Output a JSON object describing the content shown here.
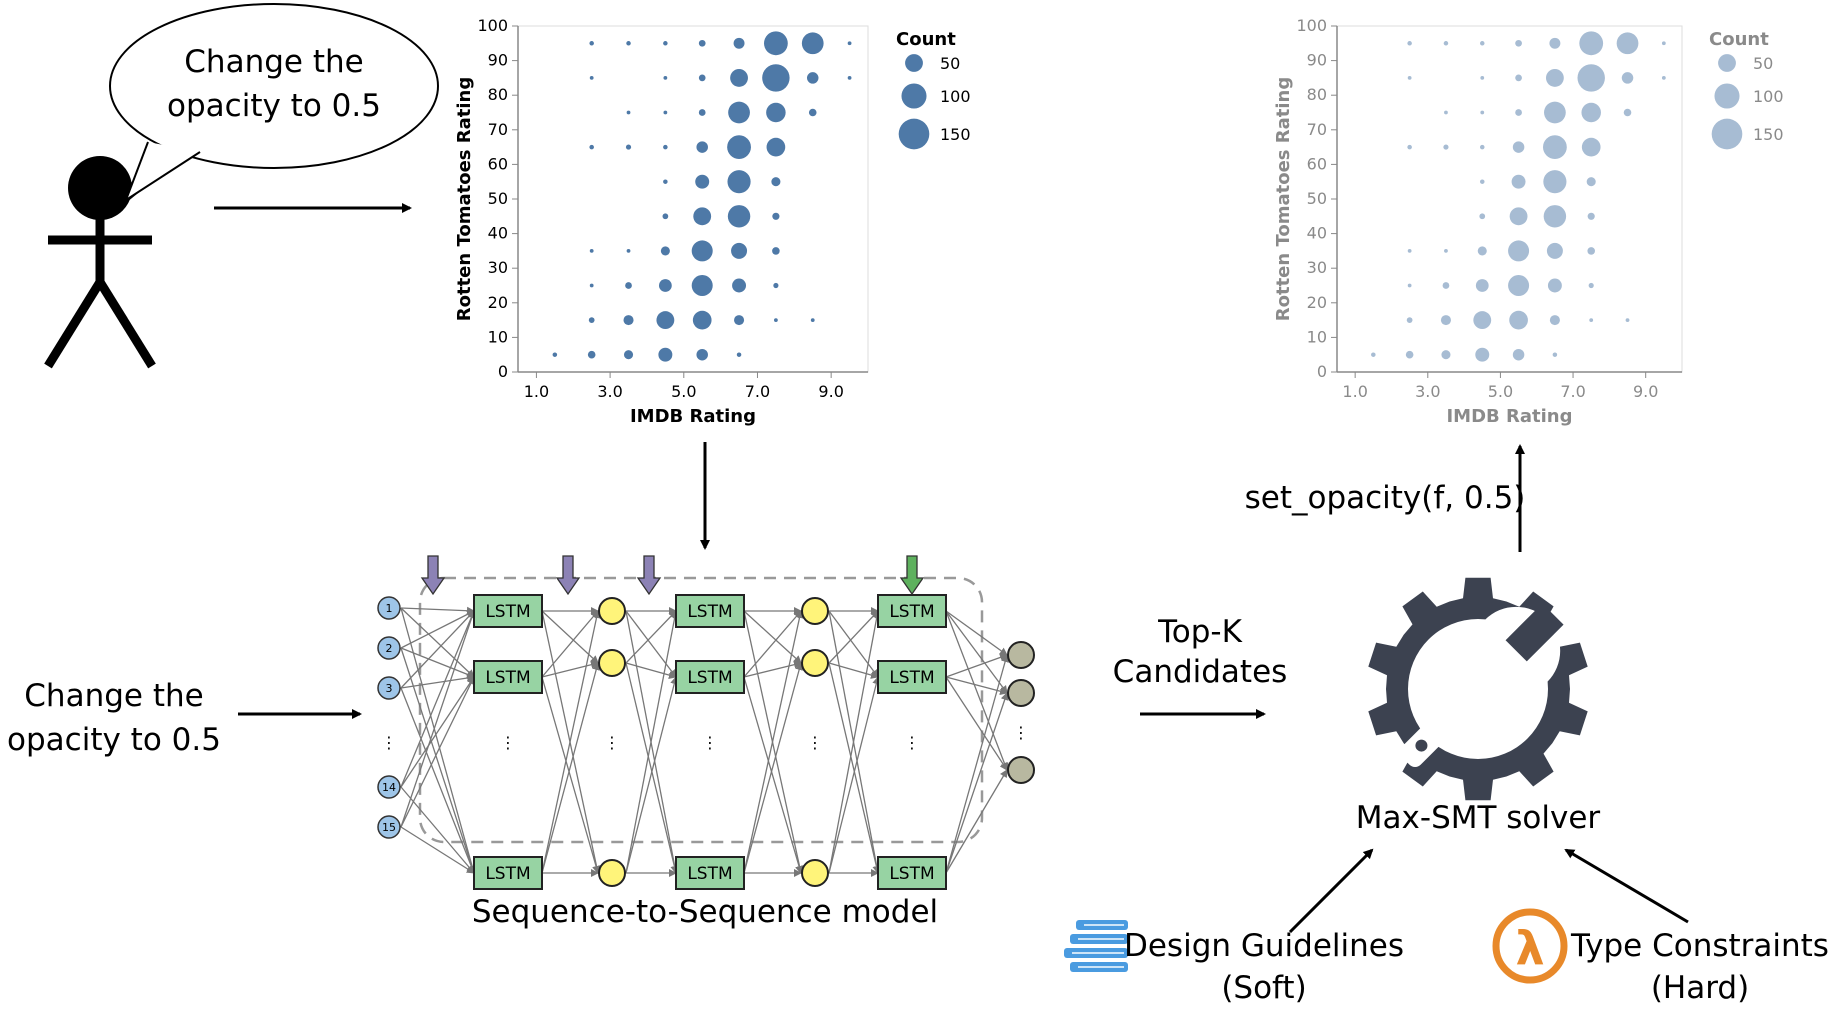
{
  "speech_bubble": {
    "line1": "Change the",
    "line2": "opacity to 0.5"
  },
  "input_text": {
    "line1": "Change the",
    "line2": "opacity to 0.5"
  },
  "model_caption": "Sequence-to-Sequence model",
  "topk_label": {
    "line1": "Top-K",
    "line2": "Candidates"
  },
  "solver_label": "Max-SMT solver",
  "operation_label": "set_opacity(f, 0.5)",
  "design_guidelines": {
    "line1": "Design Guidelines",
    "line2": "(Soft)"
  },
  "type_constraints": {
    "line1": "Type Constraints",
    "line2": "(Hard)"
  },
  "lstm_label": "LSTM",
  "input_node_labels": [
    "1",
    "2",
    "3",
    "14",
    "15"
  ],
  "ellipsis": "⋮",
  "icons": {
    "person": "stick-figure-icon",
    "gear": "gear-wrench-icon",
    "books": "books-icon",
    "lambda": "lambda-icon",
    "lambda_glyph": "λ"
  },
  "colors": {
    "bubble_primary": "#4e79a7",
    "bubble_faded": "#a7bcd3",
    "lstm_fill": "#97d3a3",
    "yellow_node": "#fff47a",
    "input_node": "#9ec5e8",
    "output_node": "#b8b8a0",
    "gear": "#3c4250",
    "lambda": "#e8892a",
    "down_arrow_purple": "#8c82b5",
    "down_arrow_green": "#5eb15e"
  },
  "chart_data": [
    {
      "type": "scatter",
      "xlabel": "IMDB Rating",
      "ylabel": "Rotten Tomatoes Rating",
      "xticks": [
        "1.0",
        "3.0",
        "5.0",
        "7.0",
        "9.0"
      ],
      "yticks": [
        "0",
        "10",
        "20",
        "30",
        "40",
        "50",
        "60",
        "70",
        "80",
        "90",
        "100"
      ],
      "xlim": [
        0.5,
        10
      ],
      "ylim": [
        0,
        100
      ],
      "legend_title": "Count",
      "legend_sizes": [
        50,
        100,
        150
      ],
      "opacity": 1.0,
      "points": [
        {
          "x": 1.5,
          "y": 5,
          "count": 2
        },
        {
          "x": 2.5,
          "y": 5,
          "count": 8
        },
        {
          "x": 3.5,
          "y": 5,
          "count": 12
        },
        {
          "x": 4.5,
          "y": 5,
          "count": 30
        },
        {
          "x": 5.5,
          "y": 5,
          "count": 20
        },
        {
          "x": 6.5,
          "y": 5,
          "count": 2
        },
        {
          "x": 2.5,
          "y": 15,
          "count": 4
        },
        {
          "x": 3.5,
          "y": 15,
          "count": 15
        },
        {
          "x": 4.5,
          "y": 15,
          "count": 50
        },
        {
          "x": 5.5,
          "y": 15,
          "count": 55
        },
        {
          "x": 6.5,
          "y": 15,
          "count": 15
        },
        {
          "x": 7.5,
          "y": 15,
          "count": 1
        },
        {
          "x": 8.5,
          "y": 15,
          "count": 1
        },
        {
          "x": 2.5,
          "y": 25,
          "count": 1
        },
        {
          "x": 3.5,
          "y": 25,
          "count": 6
        },
        {
          "x": 4.5,
          "y": 25,
          "count": 25
        },
        {
          "x": 5.5,
          "y": 25,
          "count": 70
        },
        {
          "x": 6.5,
          "y": 25,
          "count": 30
        },
        {
          "x": 7.5,
          "y": 25,
          "count": 3
        },
        {
          "x": 2.5,
          "y": 35,
          "count": 1
        },
        {
          "x": 3.5,
          "y": 35,
          "count": 1
        },
        {
          "x": 4.5,
          "y": 35,
          "count": 12
        },
        {
          "x": 5.5,
          "y": 35,
          "count": 70
        },
        {
          "x": 6.5,
          "y": 35,
          "count": 40
        },
        {
          "x": 7.5,
          "y": 35,
          "count": 8
        },
        {
          "x": 4.5,
          "y": 45,
          "count": 4
        },
        {
          "x": 5.5,
          "y": 45,
          "count": 50
        },
        {
          "x": 6.5,
          "y": 45,
          "count": 80
        },
        {
          "x": 7.5,
          "y": 45,
          "count": 7
        },
        {
          "x": 4.5,
          "y": 55,
          "count": 2
        },
        {
          "x": 5.5,
          "y": 55,
          "count": 30
        },
        {
          "x": 6.5,
          "y": 55,
          "count": 85
        },
        {
          "x": 7.5,
          "y": 55,
          "count": 12
        },
        {
          "x": 2.5,
          "y": 65,
          "count": 2
        },
        {
          "x": 3.5,
          "y": 65,
          "count": 3
        },
        {
          "x": 4.5,
          "y": 65,
          "count": 2
        },
        {
          "x": 5.5,
          "y": 65,
          "count": 20
        },
        {
          "x": 6.5,
          "y": 65,
          "count": 90
        },
        {
          "x": 7.5,
          "y": 65,
          "count": 55
        },
        {
          "x": 3.5,
          "y": 75,
          "count": 1
        },
        {
          "x": 4.5,
          "y": 75,
          "count": 1
        },
        {
          "x": 5.5,
          "y": 75,
          "count": 6
        },
        {
          "x": 6.5,
          "y": 75,
          "count": 75
        },
        {
          "x": 7.5,
          "y": 75,
          "count": 60
        },
        {
          "x": 8.5,
          "y": 75,
          "count": 8
        },
        {
          "x": 2.5,
          "y": 85,
          "count": 1
        },
        {
          "x": 4.5,
          "y": 85,
          "count": 1
        },
        {
          "x": 5.5,
          "y": 85,
          "count": 6
        },
        {
          "x": 6.5,
          "y": 85,
          "count": 50
        },
        {
          "x": 7.5,
          "y": 85,
          "count": 120
        },
        {
          "x": 8.5,
          "y": 85,
          "count": 20
        },
        {
          "x": 9.5,
          "y": 85,
          "count": 1
        },
        {
          "x": 2.5,
          "y": 95,
          "count": 2
        },
        {
          "x": 3.5,
          "y": 95,
          "count": 2
        },
        {
          "x": 4.5,
          "y": 95,
          "count": 2
        },
        {
          "x": 5.5,
          "y": 95,
          "count": 6
        },
        {
          "x": 6.5,
          "y": 95,
          "count": 18
        },
        {
          "x": 7.5,
          "y": 95,
          "count": 90
        },
        {
          "x": 8.5,
          "y": 95,
          "count": 75
        },
        {
          "x": 9.5,
          "y": 95,
          "count": 1
        }
      ]
    },
    {
      "type": "scatter",
      "xlabel": "IMDB Rating",
      "ylabel": "Rotten Tomatoes Rating",
      "xticks": [
        "1.0",
        "3.0",
        "5.0",
        "7.0",
        "9.0"
      ],
      "yticks": [
        "0",
        "10",
        "20",
        "30",
        "40",
        "50",
        "60",
        "70",
        "80",
        "90",
        "100"
      ],
      "xlim": [
        0.5,
        10
      ],
      "ylim": [
        0,
        100
      ],
      "legend_title": "Count",
      "legend_sizes": [
        50,
        100,
        150
      ],
      "opacity": 0.5,
      "points": "same as chart 1"
    }
  ]
}
